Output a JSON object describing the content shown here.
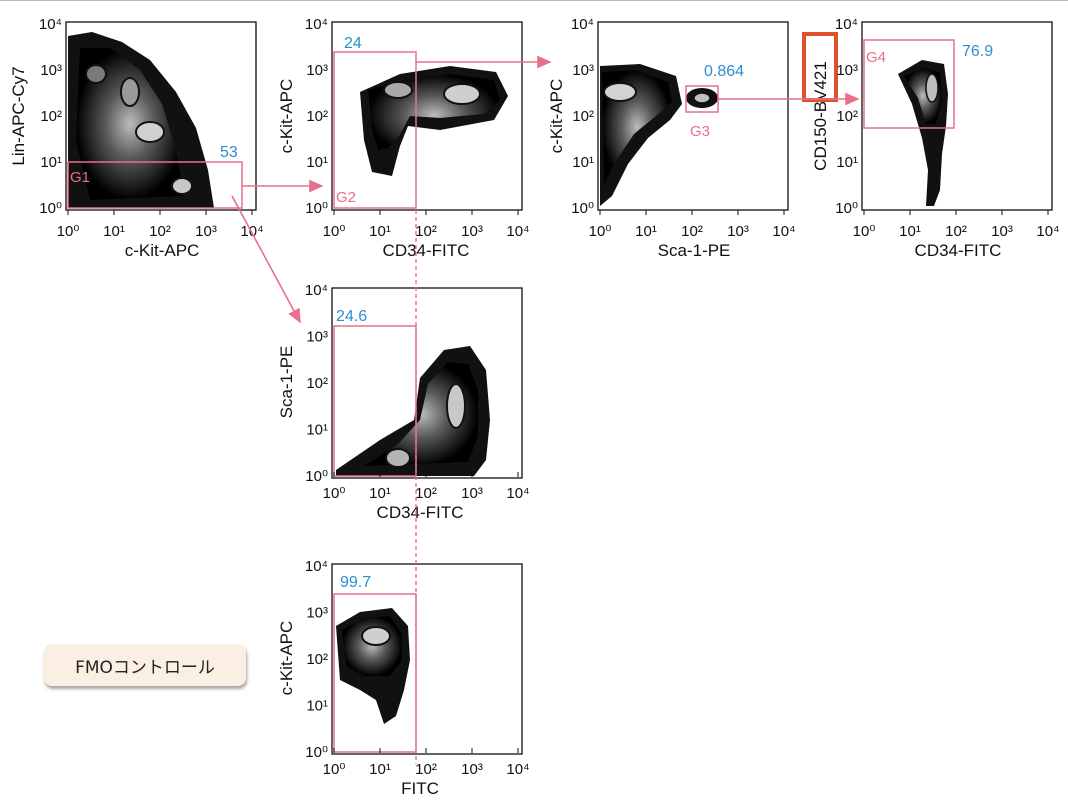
{
  "colors": {
    "gate": "#e8708a",
    "percent": "#2a8fd0",
    "highlight": "#e0502a",
    "axis": "#111111",
    "badge_bg": "#fbeee2"
  },
  "tick_labels": [
    "10⁰",
    "10¹",
    "10²",
    "10³",
    "10⁴"
  ],
  "plots": [
    {
      "id": "p1",
      "xlabel": "c-Kit-APC",
      "ylabel": "Lin-APC-Cy7",
      "gate": "G1",
      "percent": "53"
    },
    {
      "id": "p2",
      "xlabel": "CD34-FITC",
      "ylabel": "c-Kit-APC",
      "gate": "G2",
      "percent": "24"
    },
    {
      "id": "p3",
      "xlabel": "Sca-1-PE",
      "ylabel": "c-Kit-APC",
      "gate": "G3",
      "percent": "0.864"
    },
    {
      "id": "p4",
      "xlabel": "CD34-FITC",
      "ylabel": "CD150-BV421",
      "ylabel_boxed": "V421",
      "gate": "G4",
      "percent": "76.9"
    },
    {
      "id": "p5",
      "xlabel": "CD34-FITC",
      "ylabel": "Sca-1-PE",
      "gate": "",
      "percent": "24.6"
    },
    {
      "id": "p6",
      "xlabel": "FITC",
      "ylabel": "c-Kit-APC",
      "gate": "",
      "percent": "99.7"
    }
  ],
  "badge": {
    "label": "FMOコントロール"
  }
}
